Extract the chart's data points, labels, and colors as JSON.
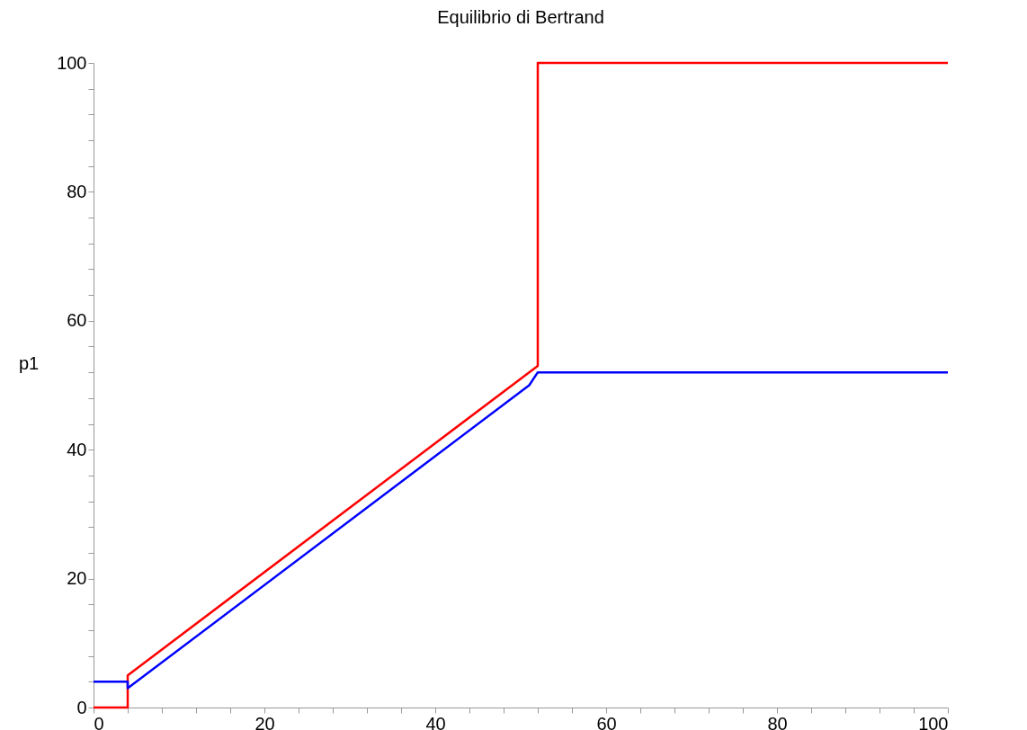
{
  "chart_data": {
    "type": "line",
    "title": "Equilibrio di Bertrand",
    "ylabel": "p1",
    "xlim": [
      0,
      100
    ],
    "ylim": [
      0,
      100
    ],
    "xticks": [
      0,
      {
        "value": 4,
        "label": null
      },
      {
        "value": 8,
        "label": null
      },
      {
        "value": 12,
        "label": null
      },
      {
        "value": 16,
        "label": null
      },
      20,
      {
        "value": 24,
        "label": null
      },
      {
        "value": 28,
        "label": null
      },
      {
        "value": 32,
        "label": null
      },
      {
        "value": 36,
        "label": null
      },
      40,
      {
        "value": 44,
        "label": null
      },
      {
        "value": 48,
        "label": null
      },
      {
        "value": 52,
        "label": null
      },
      {
        "value": 56,
        "label": null
      },
      60,
      {
        "value": 64,
        "label": null
      },
      {
        "value": 68,
        "label": null
      },
      {
        "value": 72,
        "label": null
      },
      {
        "value": 76,
        "label": null
      },
      80,
      {
        "value": 84,
        "label": null
      },
      {
        "value": 88,
        "label": null
      },
      {
        "value": 92,
        "label": null
      },
      {
        "value": 96,
        "label": null
      },
      100
    ],
    "yticks": [
      0,
      {
        "value": 4,
        "label": null
      },
      {
        "value": 8,
        "label": null
      },
      {
        "value": 12,
        "label": null
      },
      {
        "value": 16,
        "label": null
      },
      20,
      {
        "value": 24,
        "label": null
      },
      {
        "value": 28,
        "label": null
      },
      {
        "value": 32,
        "label": null
      },
      {
        "value": 36,
        "label": null
      },
      40,
      {
        "value": 44,
        "label": null
      },
      {
        "value": 48,
        "label": null
      },
      {
        "value": 52,
        "label": null
      },
      {
        "value": 56,
        "label": null
      },
      60,
      {
        "value": 64,
        "label": null
      },
      {
        "value": 68,
        "label": null
      },
      {
        "value": 72,
        "label": null
      },
      {
        "value": 76,
        "label": null
      },
      80,
      {
        "value": 84,
        "label": null
      },
      {
        "value": 88,
        "label": null
      },
      {
        "value": 92,
        "label": null
      },
      {
        "value": 96,
        "label": null
      },
      100
    ],
    "grid": false,
    "legend": false,
    "marker": "none",
    "line_style": "solid",
    "series": [
      {
        "color": "#ff0000",
        "x": [
          0,
          4,
          4,
          52,
          52,
          100
        ],
        "values": [
          0,
          0,
          5,
          53,
          100,
          100
        ]
      },
      {
        "color": "#0000ff",
        "x": [
          0,
          4,
          4,
          51,
          52,
          100
        ],
        "values": [
          4,
          4,
          3,
          50,
          52,
          52
        ]
      }
    ]
  }
}
